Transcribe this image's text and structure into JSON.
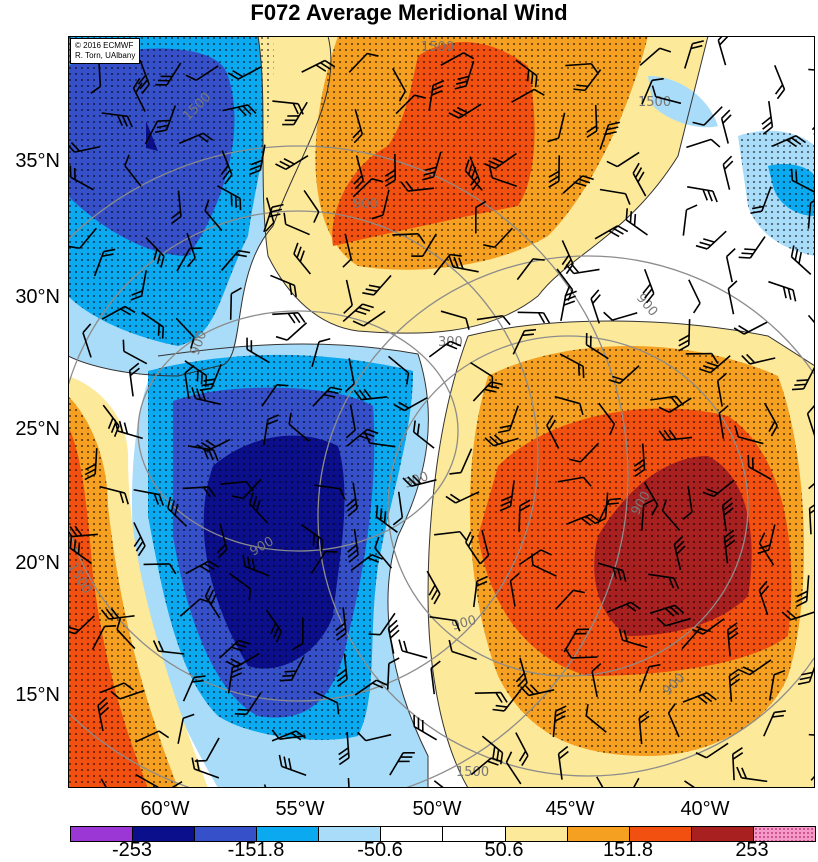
{
  "title": "F072 Average Meridional Wind",
  "credit": {
    "line1": "© 2016 ECMWF",
    "line2": "R. Torn, UAlbany"
  },
  "lat_labels": [
    "35°N",
    "30°N",
    "25°N",
    "20°N",
    "15°N"
  ],
  "lon_labels": [
    "60°W",
    "55°W",
    "50°W",
    "45°W",
    "40°W"
  ],
  "contour_labels": [
    "1500",
    "1500",
    "1500",
    "900",
    "900",
    "900",
    "900",
    "900",
    "300",
    "300",
    "1500",
    "1500",
    "900",
    "900"
  ],
  "colorbar": {
    "labels": [
      "-253",
      "-151.8",
      "-50.6",
      "50.6",
      "151.8",
      "253"
    ],
    "colors": [
      "#9b37d4",
      "#0b0f8c",
      "#3550c8",
      "#0aa9f0",
      "#a8dcf8",
      "#ffffff",
      "#ffffff",
      "#fde99a",
      "#f5a020",
      "#f25010",
      "#a82020",
      "#f59ac8"
    ]
  }
}
